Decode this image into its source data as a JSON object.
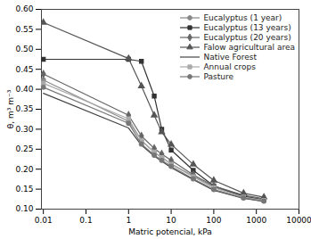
{
  "chart_data": {
    "type": "line",
    "xlabel": "Matric potencial, kPa",
    "ylabel": "θ, m³ m⁻³",
    "x": [
      0.01,
      1.0,
      2.0,
      4.0,
      6.0,
      10.0,
      33.0,
      100.0,
      500.0,
      1500.0
    ],
    "series": [
      {
        "name": "Eucalyptus (1 year)",
        "color": "#888888",
        "marker": "circle",
        "values": [
          0.423,
          0.32,
          0.272,
          0.242,
          0.23,
          0.213,
          0.183,
          0.155,
          0.133,
          0.124
        ]
      },
      {
        "name": "Eucalyptus (13 years)",
        "color": "#333333",
        "marker": "square",
        "values": [
          0.475,
          0.475,
          0.47,
          0.383,
          0.3,
          0.248,
          0.197,
          0.158,
          0.132,
          0.123
        ]
      },
      {
        "name": "Eucalyptus (20 years)",
        "color": "#666666",
        "marker": "diamond",
        "values": [
          0.438,
          0.335,
          0.283,
          0.252,
          0.238,
          0.222,
          0.186,
          0.158,
          0.135,
          0.126
        ]
      },
      {
        "name": "Falow agricultural area",
        "color": "#555555",
        "marker": "triangle",
        "values": [
          0.567,
          0.477,
          0.408,
          0.335,
          0.293,
          0.262,
          0.212,
          0.172,
          0.14,
          0.13
        ]
      },
      {
        "name": "Native Forest",
        "color": "#444444",
        "marker": "none",
        "values": [
          0.39,
          0.303,
          0.26,
          0.233,
          0.22,
          0.204,
          0.174,
          0.147,
          0.127,
          0.119
        ]
      },
      {
        "name": "Annual crops",
        "color": "#aaaaaa",
        "marker": "square",
        "values": [
          0.415,
          0.326,
          0.272,
          0.243,
          0.229,
          0.212,
          0.181,
          0.153,
          0.13,
          0.122
        ]
      },
      {
        "name": "Pasture",
        "color": "#777777",
        "marker": "circle",
        "values": [
          0.405,
          0.315,
          0.263,
          0.235,
          0.222,
          0.207,
          0.176,
          0.149,
          0.128,
          0.12
        ]
      }
    ],
    "xlim": [
      0.009,
      10000
    ],
    "ylim": [
      0.1,
      0.6
    ],
    "xticks": [
      0.01,
      0.1,
      1,
      10,
      100,
      1000,
      10000
    ],
    "yticks": [
      {
        "value": 0.1,
        "label": "0.10"
      },
      0.15,
      {
        "value": 0.2,
        "label": "0.20"
      },
      0.25,
      {
        "value": 0.3,
        "label": "0.30"
      },
      0.35,
      {
        "value": 0.4,
        "label": "0.40"
      },
      0.45,
      {
        "value": 0.5,
        "label": "0.50"
      },
      0.55,
      {
        "value": 0.6,
        "label": "0.60"
      }
    ],
    "log": "x",
    "grid": false,
    "legend": "upper right"
  }
}
